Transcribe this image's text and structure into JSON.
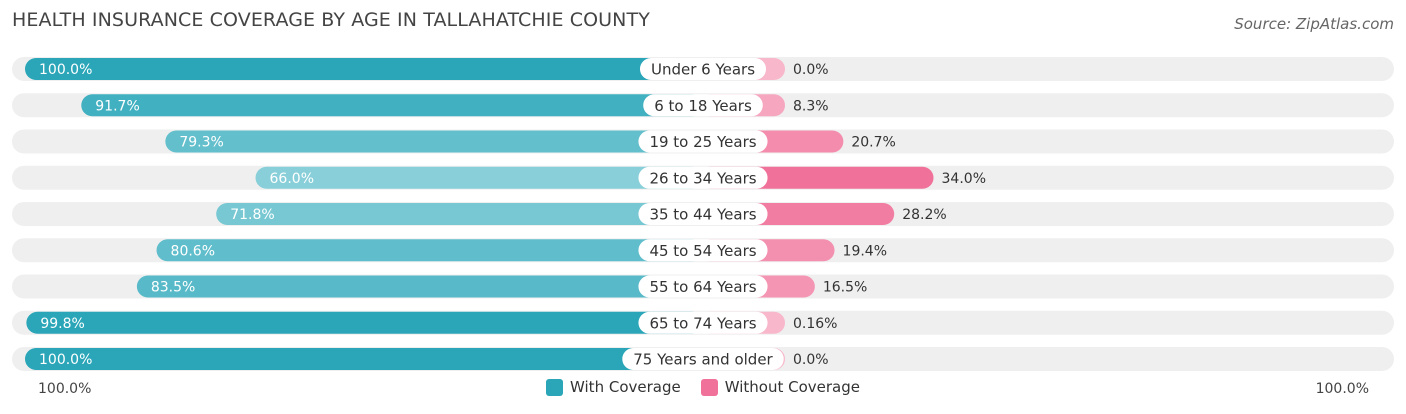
{
  "header": {
    "title": "HEALTH INSURANCE COVERAGE BY AGE IN TALLAHATCHIE COUNTY",
    "source": "Source: ZipAtlas.com"
  },
  "colors": {
    "with_coverage_strong": "#2aa6b8",
    "with_coverage_light": "#88cfd9",
    "without_coverage_strong": "#f0719a",
    "without_coverage_light": "#f8b7cb",
    "track": "#efefef"
  },
  "chart_data": {
    "type": "bar",
    "orientation": "horizontal-diverging",
    "title": "HEALTH INSURANCE COVERAGE BY AGE IN TALLAHATCHIE COUNTY",
    "categories": [
      "Under 6 Years",
      "6 to 18 Years",
      "19 to 25 Years",
      "26 to 34 Years",
      "35 to 44 Years",
      "45 to 54 Years",
      "55 to 64 Years",
      "65 to 74 Years",
      "75 Years and older"
    ],
    "series": [
      {
        "name": "With Coverage",
        "values": [
          100.0,
          91.7,
          79.3,
          66.0,
          71.8,
          80.6,
          83.5,
          99.8,
          100.0
        ],
        "labels": [
          "100.0%",
          "91.7%",
          "79.3%",
          "66.0%",
          "71.8%",
          "80.6%",
          "83.5%",
          "99.8%",
          "100.0%"
        ]
      },
      {
        "name": "Without Coverage",
        "values": [
          0.0,
          8.3,
          20.7,
          34.0,
          28.2,
          19.4,
          16.5,
          0.16,
          0.0
        ],
        "labels": [
          "0.0%",
          "8.3%",
          "20.7%",
          "34.0%",
          "28.2%",
          "19.4%",
          "16.5%",
          "0.16%",
          "0.0%"
        ]
      }
    ],
    "axis": {
      "left_label": "100.0%",
      "right_label": "100.0%",
      "range": [
        0,
        100
      ]
    },
    "legend": {
      "placement": "bottom-center",
      "items": [
        "With Coverage",
        "Without Coverage"
      ]
    }
  }
}
